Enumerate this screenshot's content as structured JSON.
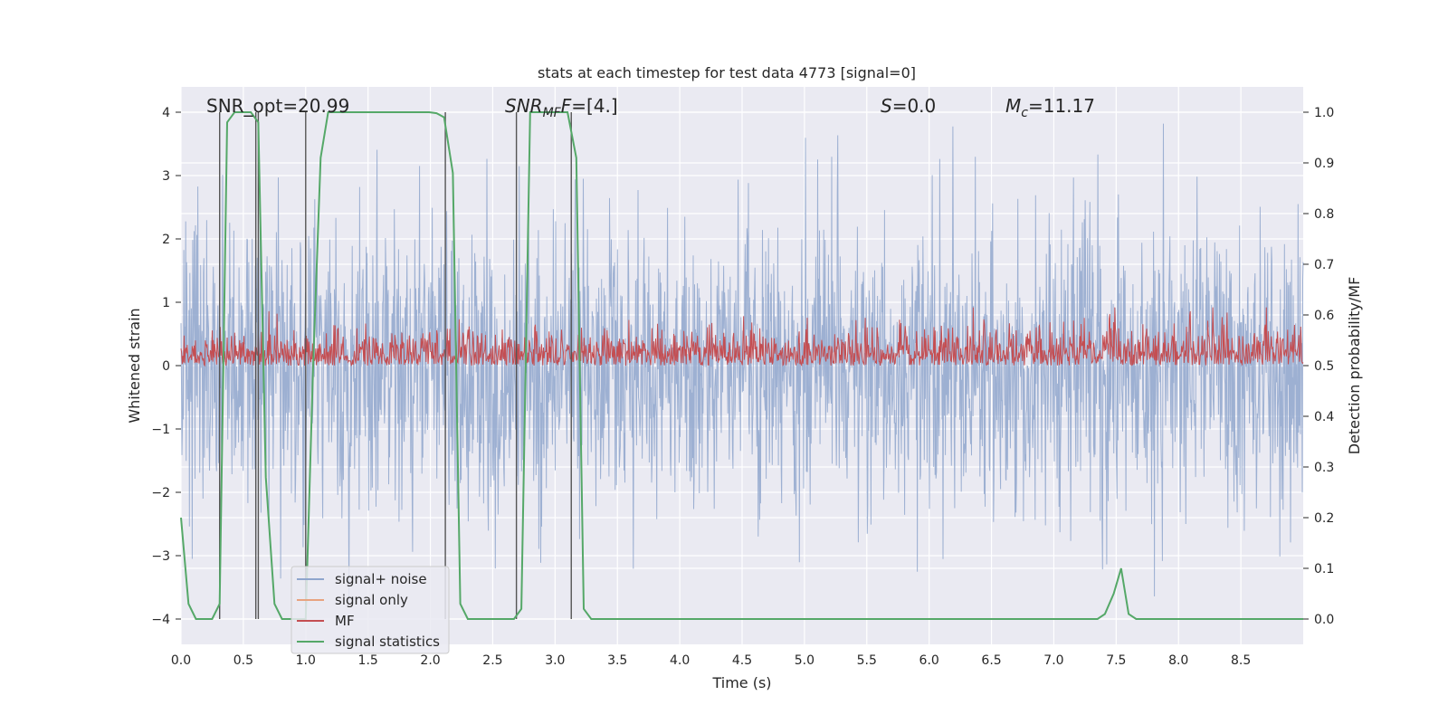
{
  "chart_data": {
    "type": "line",
    "title": "stats at each timestep for test data 4773 [signal=0]",
    "xlabel": "Time (s)",
    "ylabel": "Whitened strain",
    "y2label": "Detection probability/MF",
    "xlim": [
      0,
      9.0
    ],
    "ylim": [
      -4.4,
      4.4
    ],
    "y2lim": [
      -0.05,
      1.05
    ],
    "x_ticks": [
      "0.0",
      "0.5",
      "1.0",
      "1.5",
      "2.0",
      "2.5",
      "3.0",
      "3.5",
      "4.0",
      "4.5",
      "5.0",
      "5.5",
      "6.0",
      "6.5",
      "7.0",
      "7.5",
      "8.0",
      "8.5"
    ],
    "y_ticks": [
      "−4",
      "−3",
      "−2",
      "−1",
      "0",
      "1",
      "2",
      "3",
      "4"
    ],
    "y2_ticks": [
      "0.0",
      "0.1",
      "0.2",
      "0.3",
      "0.4",
      "0.5",
      "0.6",
      "0.7",
      "0.8",
      "0.9",
      "1.0"
    ],
    "grid": true,
    "legend_position": "lower-left",
    "annotations": {
      "snr_opt": "SNR_opt=20.99",
      "snr_mf_base": "SNR",
      "snr_mf_sub": "MF",
      "snr_mf_value": "=[4.]",
      "s_symbol": "S",
      "s_value": "=0.0",
      "mc_symbol": "M",
      "mc_sub": "c",
      "mc_value": "=11.17"
    },
    "series": [
      {
        "name": "signal+ noise",
        "color": "#8fa6cd",
        "kind": "noise",
        "amplitude_range": [
          -3.8,
          4.0
        ]
      },
      {
        "name": "signal only",
        "color": "#e8a37f",
        "kind": "flat",
        "values": []
      },
      {
        "name": "MF",
        "color": "#c44e52",
        "kind": "mf",
        "range": [
          0.0,
          1.0
        ]
      },
      {
        "name": "signal statistics",
        "color": "#55a868",
        "kind": "line",
        "axis": "y2",
        "x": [
          0.0,
          0.06,
          0.12,
          0.18,
          0.25,
          0.31,
          0.37,
          0.43,
          0.5,
          0.56,
          0.62,
          0.68,
          0.75,
          0.81,
          0.87,
          0.93,
          1.0,
          1.06,
          1.12,
          1.18,
          1.24,
          1.87,
          1.99,
          2.05,
          2.11,
          2.18,
          2.24,
          2.3,
          2.36,
          2.42,
          2.49,
          2.55,
          2.61,
          2.67,
          2.73,
          2.8,
          2.86,
          2.92,
          2.98,
          3.04,
          3.1,
          3.17,
          3.23,
          3.29,
          3.35,
          7.29,
          7.35,
          7.41,
          7.48,
          7.54,
          7.6,
          7.66,
          9.0
        ],
        "y": [
          0.2,
          0.03,
          0.0,
          0.0,
          0.0,
          0.03,
          0.98,
          1.0,
          1.0,
          1.0,
          0.98,
          0.28,
          0.03,
          0.0,
          0.0,
          0.0,
          0.0,
          0.5,
          0.91,
          1.0,
          1.0,
          1.0,
          1.0,
          0.998,
          0.99,
          0.88,
          0.03,
          0.0,
          0.0,
          0.0,
          0.0,
          0.0,
          0.0,
          0.0,
          0.02,
          1.0,
          1.0,
          1.0,
          1.0,
          1.0,
          1.0,
          0.91,
          0.02,
          0.0,
          0.0,
          0.0,
          0.0,
          0.01,
          0.05,
          0.1,
          0.01,
          0.0,
          0.0
        ]
      }
    ],
    "vertical_lines": [
      0.31,
      0.62,
      0.6,
      1.0,
      2.12,
      2.69,
      3.13
    ]
  }
}
